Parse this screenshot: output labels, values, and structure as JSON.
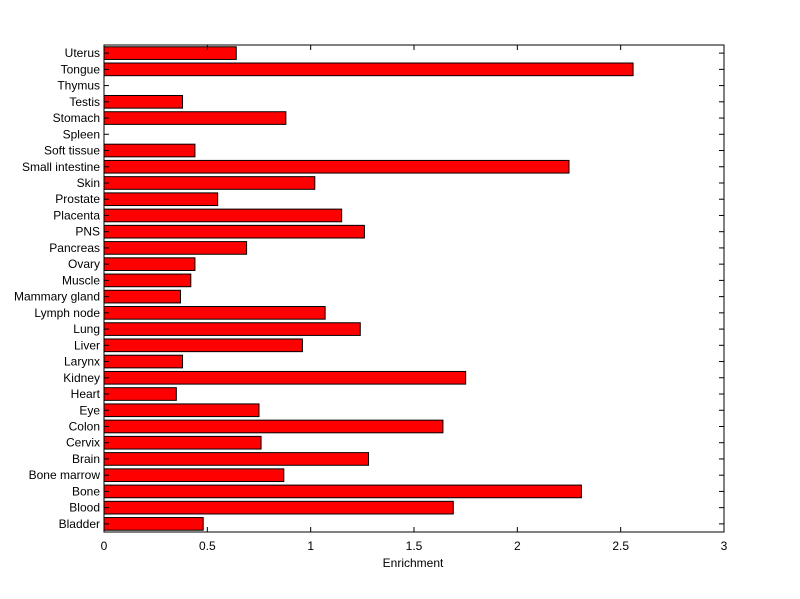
{
  "chart_data": {
    "type": "bar",
    "orientation": "horizontal",
    "title": "",
    "xlabel": "Enrichment",
    "ylabel": "",
    "xlim": [
      0,
      3
    ],
    "xticks": [
      0,
      0.5,
      1,
      1.5,
      2,
      2.5,
      3
    ],
    "xtick_labels": [
      "0",
      "0.5",
      "1",
      "1.5",
      "2",
      "2.5",
      "3"
    ],
    "grid": false,
    "legend": "none",
    "bar_color": "#ff0000",
    "edge_color": "#000000",
    "categories": [
      "Bladder",
      "Blood",
      "Bone",
      "Bone marrow",
      "Brain",
      "Cervix",
      "Colon",
      "Eye",
      "Heart",
      "Kidney",
      "Larynx",
      "Liver",
      "Lung",
      "Lymph node",
      "Mammary gland",
      "Muscle",
      "Ovary",
      "Pancreas",
      "PNS",
      "Placenta",
      "Prostate",
      "Skin",
      "Small intestine",
      "Soft tissue",
      "Spleen",
      "Stomach",
      "Testis",
      "Thymus",
      "Tongue",
      "Uterus"
    ],
    "values": [
      0.48,
      1.69,
      2.31,
      0.87,
      1.28,
      0.76,
      1.64,
      0.75,
      0.35,
      1.75,
      0.38,
      0.96,
      1.24,
      1.07,
      0.37,
      0.42,
      0.44,
      0.69,
      1.26,
      1.15,
      0.55,
      1.02,
      2.25,
      0.44,
      0,
      0.88,
      0.38,
      0,
      2.56,
      0.64
    ]
  }
}
